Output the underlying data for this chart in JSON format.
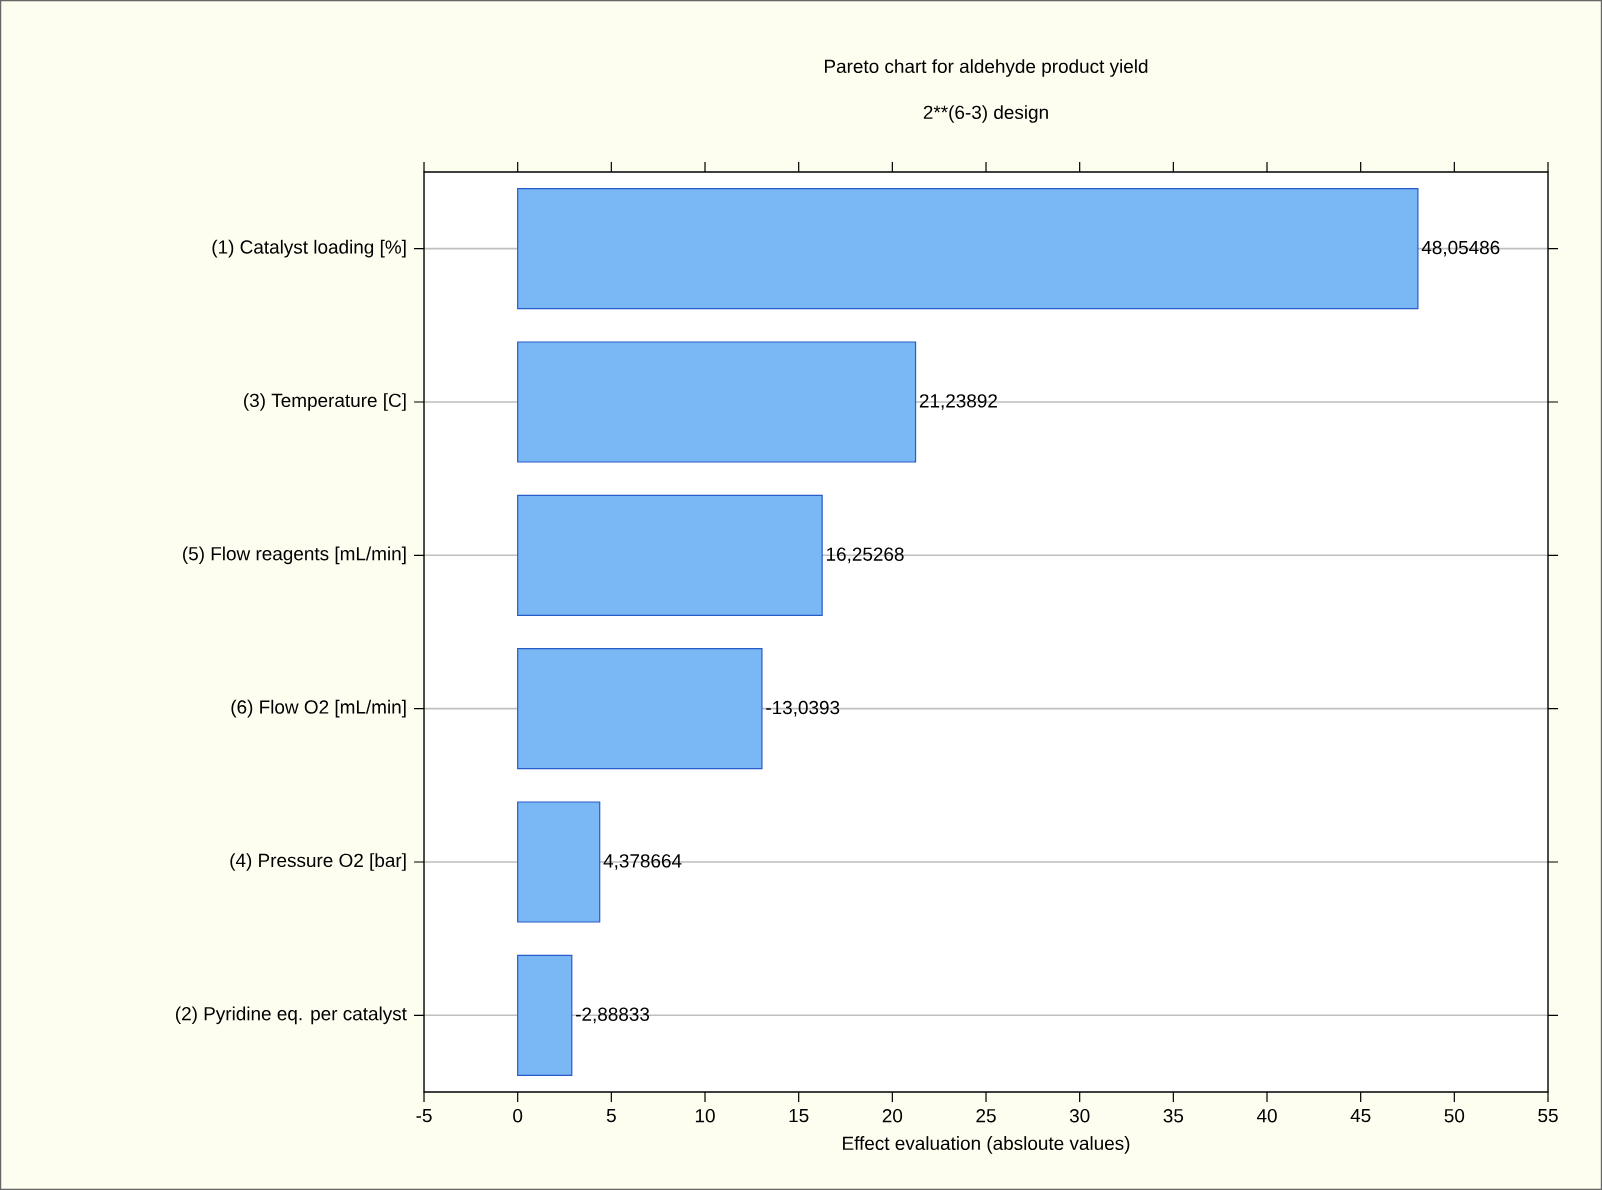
{
  "chart_data": {
    "type": "bar",
    "orientation": "horizontal",
    "title": "Pareto chart for aldehyde product yield",
    "subtitle": "2**(6-3) design",
    "xlabel": "Effect evaluation (absloute values)",
    "categories": [
      "(1) Catalyst loading [%]",
      "(3) Temperature [C]",
      "(5) Flow reagents [mL/min]",
      "(6) Flow O2 [mL/min]",
      "(4) Pressure O2 [bar]",
      "(2) Pyridine eq. per catalyst"
    ],
    "values": [
      48.05486,
      21.23892,
      16.25268,
      13.0393,
      4.378664,
      2.88833
    ],
    "value_labels": [
      "48,05486",
      "21,23892",
      "16,25268",
      "-13,0393",
      "4,378664",
      "-2,88833"
    ],
    "color": "#7ab8f5",
    "xlim": [
      -5,
      55
    ],
    "xticks": [
      -5,
      0,
      5,
      10,
      15,
      20,
      25,
      30,
      35,
      40,
      45,
      50,
      55
    ],
    "grid": "y"
  }
}
